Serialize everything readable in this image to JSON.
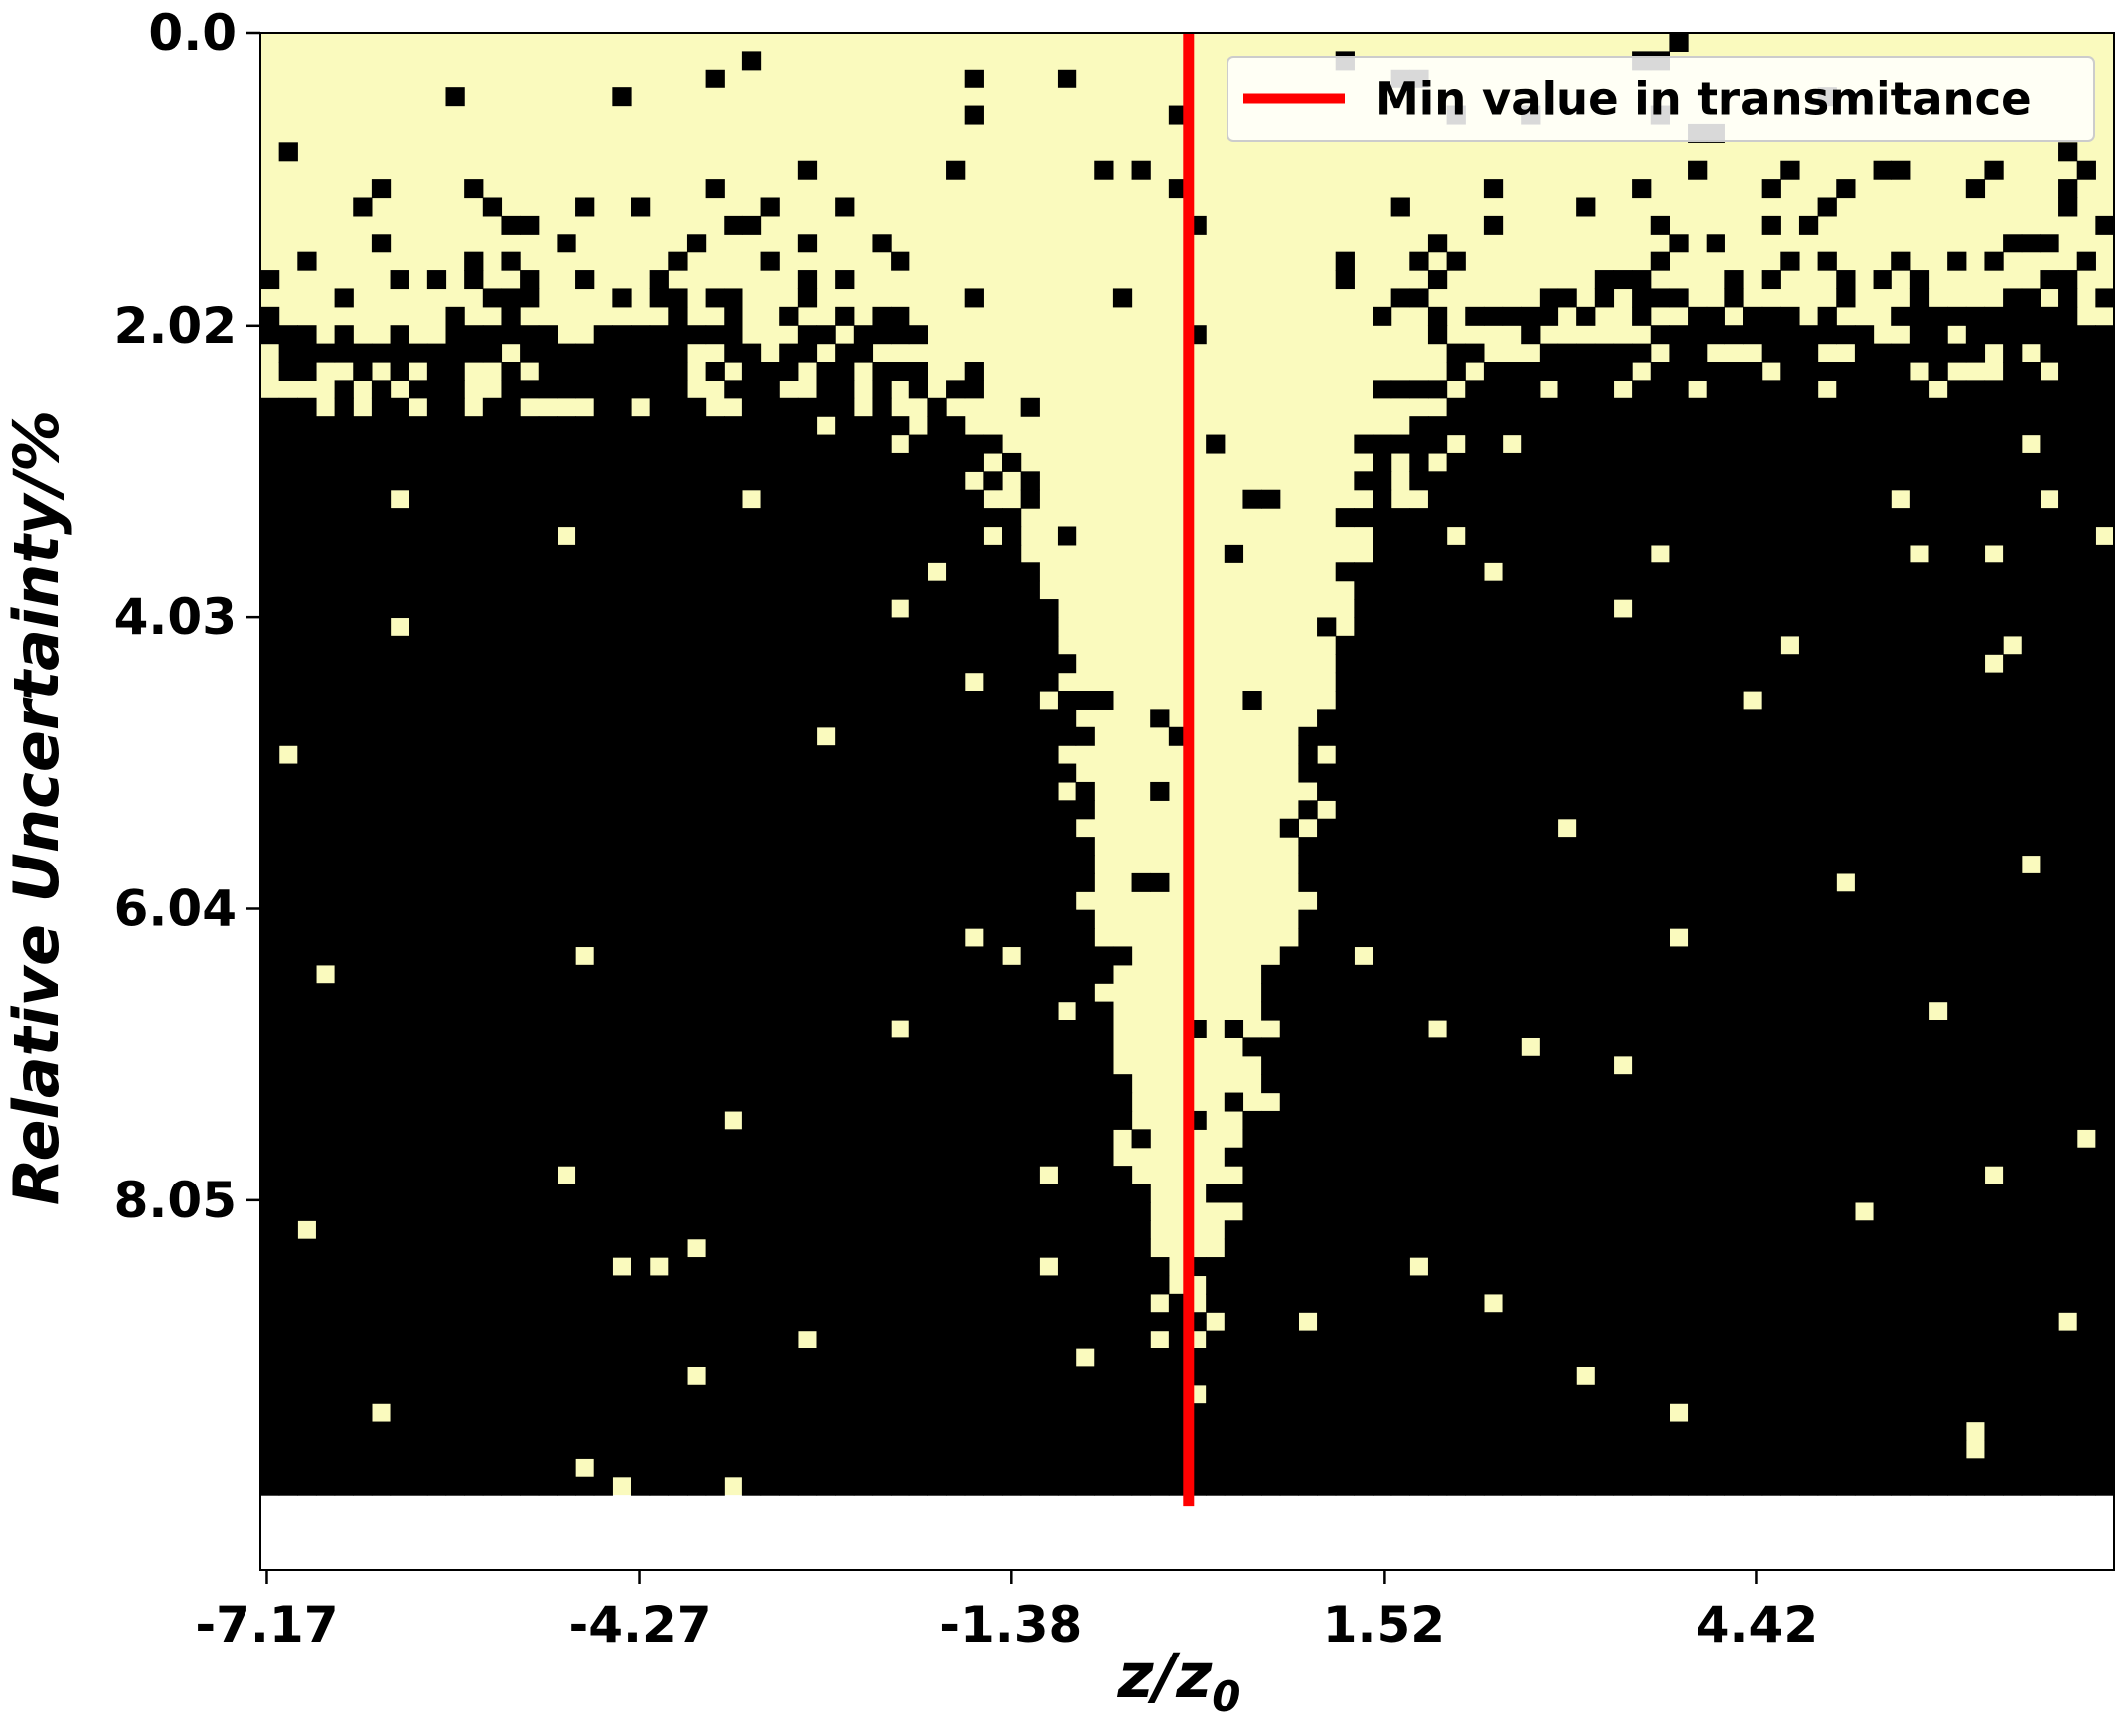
{
  "chart_data": {
    "type": "heatmap",
    "xlabel_base": "z/z",
    "xlabel_sub": "0",
    "ylabel": "Relative Uncertainty/%",
    "x_tick_labels": [
      "-7.17",
      "-4.27",
      "-1.38",
      "1.52",
      "4.42"
    ],
    "x_tick_values": [
      -7.17,
      -4.27,
      -1.38,
      1.52,
      4.42
    ],
    "y_tick_labels": [
      "0.0",
      "2.02",
      "4.03",
      "6.04",
      "8.05"
    ],
    "y_tick_values": [
      0.0,
      2.02,
      4.03,
      6.04,
      8.05
    ],
    "xlim": [
      -7.22,
      7.2
    ],
    "ylim": [
      10.6,
      0.0
    ],
    "data_ymax": 10.08,
    "colors": {
      "pass": "#fafabe",
      "fail": "#000000",
      "line": "#ff0000"
    },
    "min_transmittance_z": 0.0,
    "legend": {
      "label": "Min value in transmitance",
      "position": "top-right"
    },
    "boundary_profile": {
      "description_of_values": "z/z0 vs relative uncertainty (%) at which pale cells end",
      "points": [
        [
          -7.17,
          2.1
        ],
        [
          -6.0,
          2.1
        ],
        [
          -5.0,
          2.05
        ],
        [
          -4.0,
          2.05
        ],
        [
          -3.0,
          2.1
        ],
        [
          -2.2,
          2.25
        ],
        [
          -1.6,
          2.75
        ],
        [
          -1.2,
          3.5
        ],
        [
          -0.8,
          5.0
        ],
        [
          -0.5,
          7.3
        ],
        [
          -0.2,
          8.5
        ],
        [
          0.0,
          8.9
        ],
        [
          0.2,
          8.5
        ],
        [
          0.5,
          7.5
        ],
        [
          0.8,
          6.5
        ],
        [
          1.0,
          5.2
        ],
        [
          1.2,
          4.3
        ],
        [
          1.5,
          2.9
        ],
        [
          2.0,
          2.45
        ],
        [
          3.0,
          2.15
        ],
        [
          4.0,
          2.05
        ],
        [
          5.0,
          1.95
        ],
        [
          6.0,
          1.9
        ],
        [
          7.17,
          1.8
        ]
      ]
    }
  }
}
